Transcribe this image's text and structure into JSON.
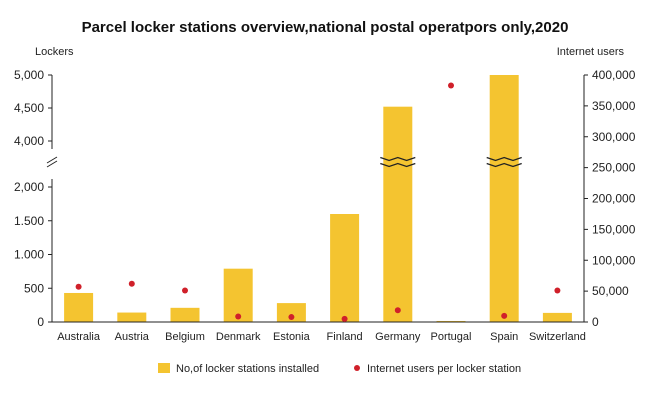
{
  "chart_data": {
    "type": "bar",
    "title": "Parcel locker stations overview,national postal operatpors only,2020",
    "left_axis_label": "Lockers",
    "right_axis_label": "Internet users",
    "categories": [
      "Australia",
      "Austria",
      "Belgium",
      "Denmark",
      "Estonia",
      "Finland",
      "Germany",
      "Portugal",
      "Spain",
      "Switzerland"
    ],
    "series": [
      {
        "name": "No,of locker stations installed",
        "type": "bar",
        "axis": "left",
        "color": "#F4C430",
        "values": [
          430,
          140,
          210,
          790,
          280,
          1600,
          4520,
          15,
          5000,
          135
        ]
      },
      {
        "name": "Internet users per locker station",
        "type": "scatter",
        "axis": "right",
        "color": "#D0202A",
        "values": [
          57000,
          62000,
          51000,
          9000,
          8000,
          5000,
          19000,
          383000,
          10000,
          51000
        ]
      }
    ],
    "left_axis": {
      "lower_ticks": [
        0,
        500,
        1000,
        1500,
        2000
      ],
      "lower_tick_labels": [
        "0",
        "500",
        "1.000",
        "1.500",
        "2,000"
      ],
      "lower_range": [
        0,
        2250
      ],
      "upper_ticks": [
        4000,
        4500,
        5000
      ],
      "upper_tick_labels": [
        "4,000",
        "4,500",
        "5,000"
      ],
      "upper_range": [
        3750,
        5000
      ],
      "broken": true
    },
    "right_axis": {
      "ticks": [
        0,
        50000,
        100000,
        150000,
        200000,
        250000,
        300000,
        350000,
        400000
      ],
      "tick_labels": [
        "0",
        "50,000",
        "100,000",
        "150,000",
        "200,000",
        "250,000",
        "300,000",
        "350,000",
        "400,000"
      ],
      "range": [
        0,
        400000
      ]
    },
    "legend_position": "bottom-center"
  }
}
